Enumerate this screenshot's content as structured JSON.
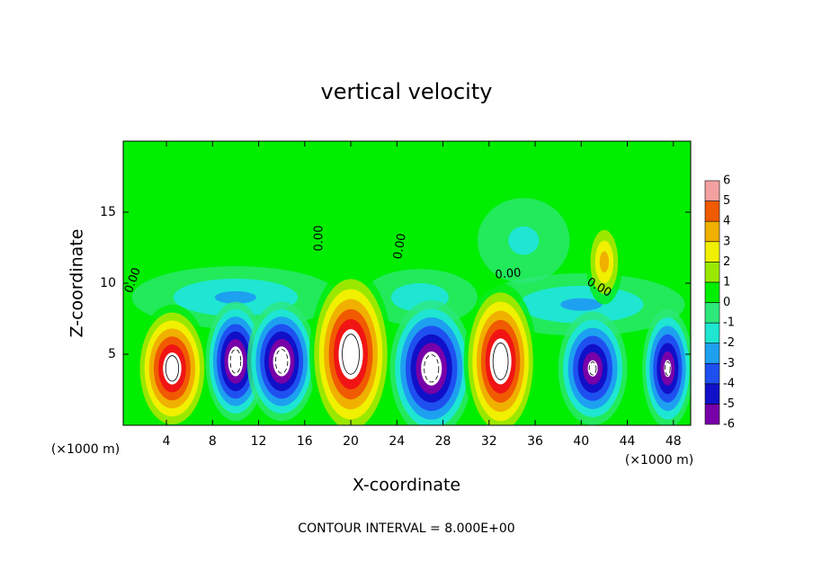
{
  "chart_data": {
    "type": "contour",
    "title": "vertical velocity",
    "x_label": "X-coordinate",
    "y_label": "Z-coordinate",
    "x_unit_label_left": "(×1000 m)",
    "x_unit_label_right": "(×1000 m)",
    "footer": "CONTOUR INTERVAL = 8.000E+00",
    "contour_labels": [
      "0.00",
      "0.00",
      "0.00",
      "0.00",
      "0.00"
    ],
    "xlim": [
      0.25,
      49.5
    ],
    "ylim": [
      0,
      20
    ],
    "xticks": [
      4,
      8,
      12,
      16,
      20,
      24,
      28,
      32,
      36,
      40,
      44,
      48
    ],
    "yticks": [
      5,
      10,
      15
    ],
    "colorbar_ticks": [
      -6,
      -5,
      -4,
      -3,
      -2,
      -1,
      0,
      1,
      2,
      3,
      4,
      5,
      6
    ],
    "colors": [
      "#7800a8",
      "#1010c8",
      "#1e50f0",
      "#1ea0f0",
      "#1ee6d2",
      "#2ee87a",
      "#00ee00",
      "#9ae800",
      "#f0f000",
      "#f0b000",
      "#f05a00",
      "#f01414",
      "#f4a0a0"
    ],
    "background_value": 0,
    "features": [
      {
        "x": 10,
        "z": 9,
        "rx": 9,
        "rz": 2.2,
        "value": -2.5
      },
      {
        "x": 40,
        "z": 8.5,
        "rx": 9,
        "rz": 2.2,
        "value": -2.5
      },
      {
        "x": 26,
        "z": 9,
        "rx": 5,
        "rz": 2,
        "value": -2
      },
      {
        "x": 4.5,
        "z": 4,
        "rx": 3.2,
        "rz": 4.5,
        "value": 8
      },
      {
        "x": 10,
        "z": 4.5,
        "rx": 2.6,
        "rz": 4.2,
        "value": -8
      },
      {
        "x": 14,
        "z": 4.5,
        "rx": 3,
        "rz": 4.2,
        "value": -8
      },
      {
        "x": 20,
        "z": 5,
        "rx": 3.6,
        "rz": 6,
        "value": 8.5
      },
      {
        "x": 27,
        "z": 4,
        "rx": 3.6,
        "rz": 4.8,
        "value": -8
      },
      {
        "x": 33,
        "z": 4.5,
        "rx": 3.2,
        "rz": 5.5,
        "value": 8.5
      },
      {
        "x": 41,
        "z": 4,
        "rx": 3,
        "rz": 4,
        "value": -7
      },
      {
        "x": 47.5,
        "z": 4,
        "rx": 2.2,
        "rz": 4.2,
        "value": -7
      },
      {
        "x": 42,
        "z": 11.5,
        "rx": 1.6,
        "rz": 3,
        "value": 4
      },
      {
        "x": 35,
        "z": 13,
        "rx": 4,
        "rz": 3,
        "value": -1.5
      }
    ]
  }
}
